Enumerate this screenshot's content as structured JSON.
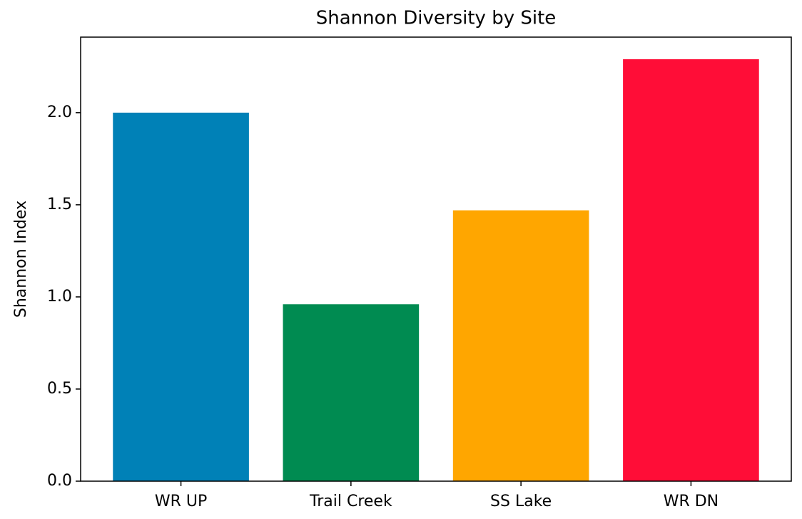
{
  "chart_data": {
    "type": "bar",
    "title": "Shannon Diversity by Site",
    "y_label": "Shannon Index",
    "categories": [
      "WR UP",
      "Trail Creek",
      "SS Lake",
      "WR DN"
    ],
    "values": [
      2.0,
      0.96,
      1.47,
      2.29
    ],
    "colors": [
      "#0081b7",
      "#008b51",
      "#ffa600",
      "#ff0d37"
    ],
    "ylim": [
      0,
      2.41
    ],
    "yticks": [
      {
        "value": 0,
        "label": "0.0"
      },
      0.5,
      {
        "value": 1,
        "label": "1.0"
      },
      1.5,
      {
        "value": 2,
        "label": "2.0"
      }
    ],
    "grid": false
  }
}
